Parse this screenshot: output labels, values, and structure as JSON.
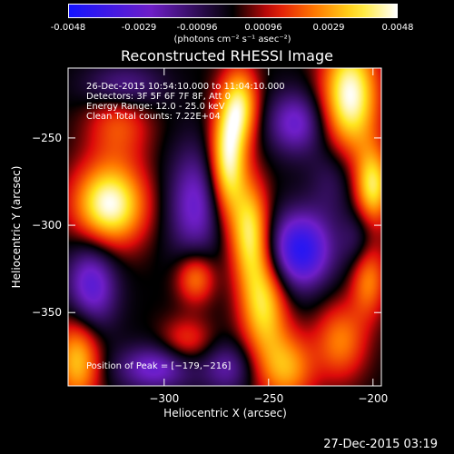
{
  "colorbar": {
    "ticks": [
      "-0.0048",
      "-0.0029",
      "-0.00096",
      "0.00096",
      "0.0029",
      "0.0048"
    ],
    "units": "(photons cm⁻² s⁻¹ asec⁻²)"
  },
  "chart_data": {
    "type": "heatmap",
    "title": "Reconstructed RHESSI Image",
    "xlabel": "Heliocentric X (arcsec)",
    "ylabel": "Heliocentric Y (arcsec)",
    "xlim": [
      -346,
      -196
    ],
    "ylim": [
      -392,
      -210
    ],
    "x_ticks": [
      "−300",
      "−250",
      "−200"
    ],
    "y_ticks": [
      "−250",
      "−300",
      "−350"
    ],
    "x_tick_values": [
      -300,
      -250,
      -200
    ],
    "y_tick_values": [
      -250,
      -300,
      -350
    ],
    "colorbar_range": [
      -0.0048,
      0.0048
    ],
    "colormap": "blue-purple-black-red-yellow-white",
    "annotations": [
      "26-Dec-2015 10:54:10.000 to 11:04:10.000",
      "Detectors: 3F 5F 6F 7F 8F, Att 0",
      "Energy Range: 12.0 - 25.0 keV",
      "Clean    Total counts: 7.22E+04"
    ],
    "peak_label": "Position of Peak = [−179,−216]",
    "peak": [
      -179,
      -216
    ]
  },
  "timestamp": "27-Dec-2015 03:19"
}
